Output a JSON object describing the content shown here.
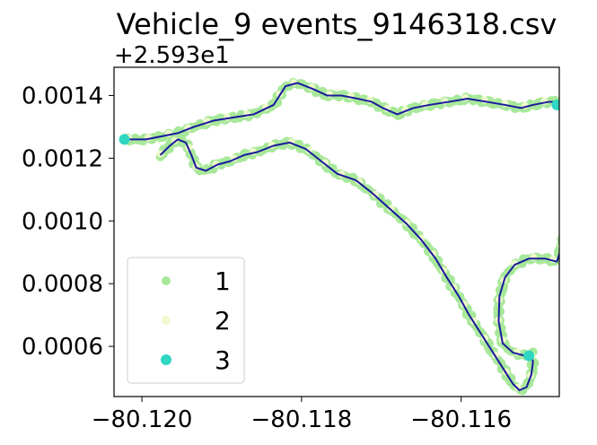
{
  "chart_data": {
    "type": "scatter",
    "title": "Vehicle_9 events_9146318.csv",
    "offset_label": "+2.593e1",
    "xlabel": "",
    "ylabel": "",
    "xlim": [
      -80.12035,
      -80.11477
    ],
    "ylim": [
      0.00044,
      0.00149
    ],
    "x_ticks": [
      -80.12,
      -80.118,
      -80.116
    ],
    "x_tick_labels": [
      "−80.120",
      "−80.118",
      "−80.116"
    ],
    "y_ticks": [
      0.0006,
      0.0008,
      0.001,
      0.0012,
      0.0014
    ],
    "y_tick_labels": [
      "0.0006",
      "0.0008",
      "0.0010",
      "0.0012",
      "0.0014"
    ],
    "grid": false,
    "legend": {
      "position": "lower-left"
    },
    "series": [
      {
        "name": "1",
        "color": "#a8e89a",
        "marker_size": 5
      },
      {
        "name": "2",
        "color": "#eef9cc",
        "marker_size": 5
      },
      {
        "name": "3",
        "color": "#2fd6c2",
        "marker_size": 6
      }
    ],
    "track_color": "#1a1a9c",
    "track": [
      [
        -80.11977,
        0.00121
      ],
      [
        -80.11965,
        0.00124
      ],
      [
        -80.11955,
        0.00126
      ],
      [
        -80.11945,
        0.00125
      ],
      [
        -80.11938,
        0.00121
      ],
      [
        -80.11932,
        0.00117
      ],
      [
        -80.1192,
        0.00116
      ],
      [
        -80.11905,
        0.00118
      ],
      [
        -80.1189,
        0.00119
      ],
      [
        -80.11872,
        0.00121
      ],
      [
        -80.11855,
        0.00122
      ],
      [
        -80.11835,
        0.00124
      ],
      [
        -80.11815,
        0.00125
      ],
      [
        -80.11795,
        0.00123
      ],
      [
        -80.11775,
        0.00119
      ],
      [
        -80.11755,
        0.00115
      ],
      [
        -80.11732,
        0.00113
      ],
      [
        -80.11712,
        0.00109
      ],
      [
        -80.1169,
        0.00104
      ],
      [
        -80.11668,
        0.00099
      ],
      [
        -80.1165,
        0.00094
      ],
      [
        -80.11632,
        0.00088
      ],
      [
        -80.11618,
        0.00082
      ],
      [
        -80.11603,
        0.00076
      ],
      [
        -80.1159,
        0.0007
      ],
      [
        -80.11575,
        0.00064
      ],
      [
        -80.1156,
        0.00058
      ],
      [
        -80.11545,
        0.00052
      ],
      [
        -80.11535,
        0.00048
      ],
      [
        -80.11527,
        0.00046
      ],
      [
        -80.11518,
        0.00047
      ],
      [
        -80.11512,
        0.00051
      ],
      [
        -80.1151,
        0.00055
      ],
      [
        -80.11512,
        0.00058
      ],
      [
        -80.1152,
        0.00057
      ],
      [
        -80.11535,
        0.00058
      ],
      [
        -80.11548,
        0.00061
      ],
      [
        -80.11553,
        0.00068
      ],
      [
        -80.11552,
        0.00076
      ],
      [
        -80.11545,
        0.00082
      ],
      [
        -80.11533,
        0.00086
      ],
      [
        -80.11515,
        0.00088
      ],
      [
        -80.11495,
        0.00088
      ],
      [
        -80.1148,
        0.00087
      ],
      [
        -80.11475,
        0.00091
      ],
      [
        -80.1147,
        0.00098
      ],
      [
        -80.11462,
        0.00104
      ],
      [
        -80.11455,
        0.0011
      ],
      [
        -80.11445,
        0.00117
      ],
      [
        -80.1143,
        0.00122
      ],
      [
        -80.1141,
        0.00126
      ],
      [
        -80.1139,
        0.00131
      ],
      [
        -80.1138,
        0.00134
      ],
      [
        -80.11378,
        0.00137
      ],
      [
        -80.11388,
        0.00139
      ],
      [
        -80.11408,
        0.00139
      ],
      [
        -80.1143,
        0.00139
      ],
      [
        -80.1145,
        0.00138
      ],
      [
        -80.1147,
        0.00138
      ],
      [
        -80.1149,
        0.00138
      ],
      [
        -80.1151,
        0.00137
      ],
      [
        -80.11525,
        0.00136
      ],
      [
        -80.11545,
        0.00137
      ],
      [
        -80.11568,
        0.00138
      ],
      [
        -80.11592,
        0.00139
      ],
      [
        -80.11615,
        0.00138
      ],
      [
        -80.1164,
        0.00137
      ],
      [
        -80.1166,
        0.00136
      ],
      [
        -80.1168,
        0.00134
      ],
      [
        -80.11698,
        0.00136
      ],
      [
        -80.11712,
        0.00138
      ],
      [
        -80.1173,
        0.00139
      ],
      [
        -80.1175,
        0.0014
      ],
      [
        -80.11768,
        0.0014
      ],
      [
        -80.11785,
        0.00142
      ],
      [
        -80.11805,
        0.00144
      ],
      [
        -80.1182,
        0.00143
      ],
      [
        -80.11835,
        0.00137
      ],
      [
        -80.1186,
        0.00134
      ],
      [
        -80.11885,
        0.00133
      ],
      [
        -80.1191,
        0.00132
      ],
      [
        -80.11935,
        0.0013
      ],
      [
        -80.11955,
        0.00128
      ],
      [
        -80.11975,
        0.00127
      ],
      [
        -80.11995,
        0.00126
      ],
      [
        -80.12012,
        0.00126
      ],
      [
        -80.12022,
        0.00126
      ]
    ],
    "highlight_points": [
      {
        "series": "3",
        "x": -80.12022,
        "y": 0.00126
      },
      {
        "series": "3",
        "x": -80.1148,
        "y": 0.00137
      },
      {
        "series": "3",
        "x": -80.11515,
        "y": 0.00057
      }
    ]
  }
}
